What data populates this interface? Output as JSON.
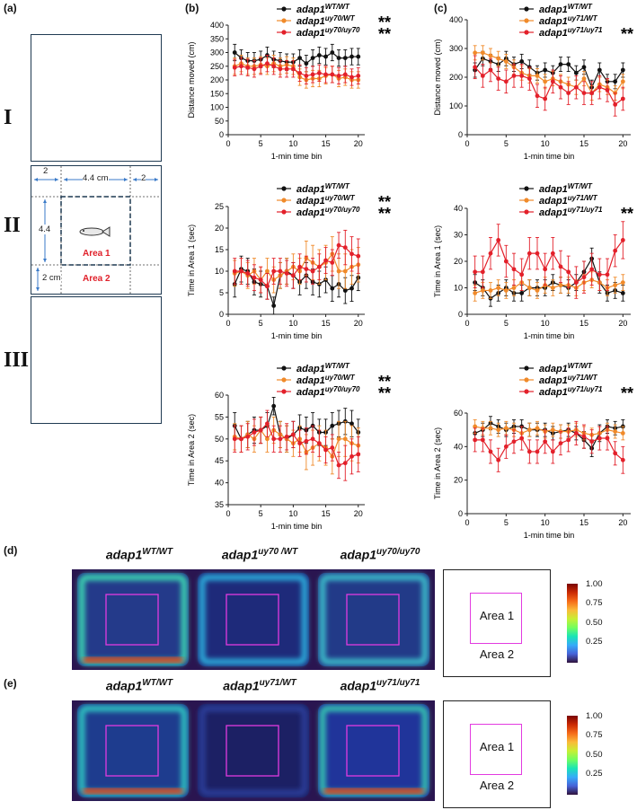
{
  "panels": {
    "a": {
      "label": "(a)"
    },
    "b": {
      "label": "(b)"
    },
    "c": {
      "label": "(c)"
    },
    "d": {
      "label": "(d)"
    },
    "e": {
      "label": "(e)"
    }
  },
  "arena": {
    "rows": [
      "I",
      "II",
      "III"
    ],
    "dims": {
      "left": "2",
      "center": "4.4 cm",
      "right": "2",
      "vertical": "4.4",
      "bottom": "2 cm"
    },
    "area1": "Area 1",
    "area2": "Area 2",
    "fish_icon": "fish-icon"
  },
  "colors": {
    "wt": "#111111",
    "het": "#f08a2a",
    "hom": "#e3202a",
    "area_box": "#e23be0",
    "arena_border": "#1f3a52"
  },
  "xlabel": "1-min time bin",
  "legends": {
    "b": [
      {
        "base": "adap1",
        "sup": "WT/WT",
        "stars": ""
      },
      {
        "base": "adap1",
        "sup": "uy70/WT",
        "stars": "**"
      },
      {
        "base": "adap1",
        "sup": "uy70/uy70",
        "stars": "**"
      }
    ],
    "c": [
      {
        "base": "adap1",
        "sup": "WT/WT",
        "stars": ""
      },
      {
        "base": "adap1",
        "sup": "uy71/WT",
        "stars": ""
      },
      {
        "base": "adap1",
        "sup": "uy71/uy71",
        "stars": "**"
      }
    ]
  },
  "chart_data": [
    {
      "id": "b1",
      "type": "line",
      "ylabel": "Distance moved (cm)",
      "xlabel": "1-min time bin",
      "ylim": [
        0,
        400
      ],
      "yticks": [
        0,
        50,
        100,
        150,
        200,
        250,
        300,
        350,
        400
      ],
      "xlim": [
        0,
        21
      ],
      "xticks": [
        0,
        5,
        10,
        15,
        20
      ],
      "x": [
        1,
        2,
        3,
        4,
        5,
        6,
        7,
        8,
        9,
        10,
        11,
        12,
        13,
        14,
        15,
        16,
        17,
        18,
        19,
        20
      ],
      "series": [
        {
          "name": "adap1 WT/WT",
          "values": [
            300,
            280,
            270,
            270,
            275,
            290,
            275,
            270,
            265,
            265,
            280,
            260,
            280,
            290,
            285,
            300,
            280,
            280,
            285,
            285
          ],
          "err": [
            30,
            30,
            30,
            30,
            30,
            30,
            30,
            30,
            30,
            30,
            30,
            30,
            30,
            30,
            30,
            30,
            30,
            30,
            30,
            30
          ]
        },
        {
          "name": "adap1 uy70/WT",
          "values": [
            250,
            260,
            250,
            250,
            255,
            250,
            260,
            250,
            255,
            250,
            210,
            200,
            205,
            205,
            215,
            220,
            205,
            210,
            200,
            200
          ],
          "err": [
            30,
            30,
            30,
            30,
            30,
            30,
            30,
            30,
            30,
            30,
            30,
            30,
            30,
            30,
            30,
            30,
            30,
            30,
            30,
            30
          ]
        },
        {
          "name": "adap1 uy70/uy70",
          "values": [
            245,
            250,
            245,
            240,
            250,
            260,
            250,
            240,
            240,
            240,
            225,
            215,
            220,
            225,
            220,
            220,
            215,
            220,
            210,
            215
          ],
          "err": [
            30,
            30,
            30,
            30,
            30,
            30,
            30,
            30,
            30,
            30,
            30,
            30,
            30,
            30,
            30,
            30,
            30,
            30,
            30,
            30
          ]
        }
      ]
    },
    {
      "id": "b2",
      "type": "line",
      "ylabel": "Time in Area 1 (sec)",
      "xlabel": "1-min time bin",
      "ylim": [
        0,
        25
      ],
      "yticks": [
        0,
        5,
        10,
        15,
        20,
        25
      ],
      "xlim": [
        0,
        21
      ],
      "xticks": [
        0,
        5,
        10,
        15,
        20
      ],
      "x": [
        1,
        2,
        3,
        4,
        5,
        6,
        7,
        8,
        9,
        10,
        11,
        12,
        13,
        14,
        15,
        16,
        17,
        18,
        19,
        20
      ],
      "series": [
        {
          "name": "adap1 WT/WT",
          "values": [
            7,
            10.5,
            10,
            7.5,
            7,
            6.5,
            2,
            9,
            10,
            9,
            7.5,
            9,
            7.5,
            7,
            8,
            6,
            7,
            5.5,
            6,
            8.5
          ],
          "err": [
            3,
            3,
            3,
            3,
            3,
            3,
            2,
            3,
            3,
            3,
            3,
            3,
            3,
            3,
            3,
            3,
            3,
            3,
            3,
            3
          ]
        },
        {
          "name": "adap1 uy70/WT",
          "values": [
            9.5,
            10,
            9,
            10,
            8,
            10,
            8,
            9,
            10,
            11,
            10,
            13,
            12,
            11,
            12,
            14,
            10,
            10,
            11,
            11.5
          ],
          "err": [
            3,
            3,
            3,
            3,
            3,
            3,
            3,
            3,
            3,
            3,
            3,
            4,
            4,
            4,
            4,
            4,
            4,
            4,
            4,
            4
          ]
        },
        {
          "name": "adap1 uy70/uy70",
          "values": [
            10,
            10,
            9.5,
            8.5,
            8,
            6.5,
            10,
            10,
            9.5,
            9,
            11,
            10.5,
            10,
            11,
            12.5,
            12,
            16,
            15.5,
            14,
            13.5
          ],
          "err": [
            3,
            3,
            3,
            3,
            3,
            3,
            3,
            3,
            3,
            3,
            3,
            3,
            3,
            3,
            3,
            3,
            3,
            4,
            4,
            4
          ]
        }
      ]
    },
    {
      "id": "b3",
      "type": "line",
      "ylabel": "Time in Area 2 (sec)",
      "xlabel": "1-min time bin",
      "ylim": [
        35,
        60
      ],
      "yticks": [
        35,
        40,
        45,
        50,
        55,
        60
      ],
      "xlim": [
        0,
        21
      ],
      "xticks": [
        0,
        5,
        10,
        15,
        20
      ],
      "x": [
        1,
        2,
        3,
        4,
        5,
        6,
        7,
        8,
        9,
        10,
        11,
        12,
        13,
        14,
        15,
        16,
        17,
        18,
        19,
        20
      ],
      "series": [
        {
          "name": "adap1 WT/WT",
          "values": [
            53,
            50,
            51,
            52,
            52,
            53,
            57.5,
            51,
            50,
            51,
            52.5,
            52,
            53,
            51.5,
            51.5,
            53,
            53.5,
            54,
            53.5,
            51.5
          ],
          "err": [
            3,
            3,
            3,
            3,
            3,
            3,
            2,
            3,
            3,
            3,
            3,
            3,
            3,
            3,
            3,
            3,
            3,
            3,
            3,
            3
          ]
        },
        {
          "name": "adap1 uy70/WT",
          "values": [
            50.5,
            50,
            51,
            50,
            52,
            50,
            52,
            51,
            50,
            49,
            50,
            47,
            48,
            49,
            48,
            46,
            50,
            50,
            49,
            48.5
          ],
          "err": [
            3,
            3,
            3,
            3,
            3,
            3,
            3,
            3,
            3,
            3,
            3,
            4,
            4,
            4,
            4,
            4,
            4,
            4,
            4,
            4
          ]
        },
        {
          "name": "adap1 uy70/uy70",
          "values": [
            50,
            50,
            50.5,
            51.5,
            52,
            53.5,
            50,
            50,
            50.5,
            51,
            49,
            49.5,
            50,
            49,
            47.5,
            48,
            44,
            44.5,
            46,
            46.5
          ],
          "err": [
            3,
            3,
            3,
            3,
            3,
            3,
            3,
            3,
            3,
            3,
            3,
            3,
            3,
            3,
            3,
            3,
            3,
            4,
            4,
            4
          ]
        }
      ]
    },
    {
      "id": "c1",
      "type": "line",
      "ylabel": "Distance moved (cm)",
      "xlabel": "1-min time bin",
      "ylim": [
        0,
        400
      ],
      "yticks": [
        0,
        100,
        200,
        300,
        400
      ],
      "xlim": [
        0,
        21
      ],
      "xticks": [
        0,
        5,
        10,
        15,
        20
      ],
      "x": [
        1,
        2,
        3,
        4,
        5,
        6,
        7,
        8,
        9,
        10,
        11,
        12,
        13,
        14,
        15,
        16,
        17,
        18,
        19,
        20
      ],
      "series": [
        {
          "name": "adap1 WT/WT",
          "values": [
            225,
            265,
            255,
            245,
            265,
            245,
            255,
            235,
            215,
            225,
            215,
            245,
            245,
            215,
            235,
            165,
            225,
            185,
            185,
            225
          ],
          "err": [
            25,
            25,
            25,
            25,
            25,
            25,
            25,
            25,
            25,
            25,
            25,
            25,
            25,
            25,
            25,
            25,
            25,
            25,
            25,
            25
          ]
        },
        {
          "name": "adap1 uy71/WT",
          "values": [
            285,
            285,
            275,
            265,
            255,
            235,
            215,
            205,
            205,
            185,
            195,
            185,
            175,
            165,
            195,
            145,
            175,
            165,
            145,
            185
          ],
          "err": [
            25,
            25,
            25,
            25,
            25,
            25,
            25,
            25,
            25,
            25,
            25,
            25,
            25,
            25,
            25,
            25,
            25,
            25,
            25,
            25
          ]
        },
        {
          "name": "adap1 uy71/uy71",
          "values": [
            235,
            205,
            225,
            195,
            185,
            205,
            205,
            195,
            135,
            125,
            185,
            165,
            145,
            165,
            145,
            145,
            165,
            155,
            105,
            125
          ],
          "err": [
            40,
            40,
            40,
            40,
            40,
            40,
            40,
            40,
            40,
            40,
            40,
            40,
            40,
            40,
            40,
            40,
            40,
            40,
            40,
            40
          ]
        }
      ]
    },
    {
      "id": "c2",
      "type": "line",
      "ylabel": "Time in Area 1 (sec)",
      "xlabel": "1-min time bin",
      "ylim": [
        0,
        40
      ],
      "yticks": [
        0,
        10,
        20,
        30,
        40
      ],
      "xlim": [
        0,
        21
      ],
      "xticks": [
        0,
        5,
        10,
        15,
        20
      ],
      "x": [
        1,
        2,
        3,
        4,
        5,
        6,
        7,
        8,
        9,
        10,
        11,
        12,
        13,
        14,
        15,
        16,
        17,
        18,
        19,
        20
      ],
      "series": [
        {
          "name": "adap1 WT/WT",
          "values": [
            12,
            10,
            6,
            8,
            10,
            8,
            8,
            10,
            10,
            10,
            12,
            11,
            10,
            12,
            16,
            21,
            12,
            8,
            9,
            8
          ],
          "err": [
            3,
            3,
            3,
            3,
            3,
            3,
            3,
            3,
            3,
            3,
            3,
            3,
            3,
            3,
            4,
            4,
            4,
            3,
            3,
            3
          ]
        },
        {
          "name": "adap1 uy71/WT",
          "values": [
            8,
            9,
            9,
            10,
            9,
            10,
            12,
            10,
            9,
            11,
            10,
            11,
            11,
            10,
            12,
            13,
            12,
            10,
            11,
            12
          ],
          "err": [
            3,
            3,
            3,
            3,
            3,
            3,
            3,
            3,
            3,
            3,
            3,
            3,
            3,
            3,
            3,
            3,
            3,
            3,
            3,
            3
          ]
        },
        {
          "name": "adap1 uy71/uy71",
          "values": [
            16,
            16,
            23,
            28,
            20,
            17,
            15,
            23,
            23,
            17,
            23,
            18,
            16,
            12,
            14,
            17,
            15,
            15,
            24,
            28
          ],
          "err": [
            6,
            6,
            6,
            6,
            6,
            6,
            6,
            6,
            6,
            6,
            6,
            6,
            6,
            6,
            6,
            6,
            6,
            6,
            6,
            7
          ]
        }
      ]
    },
    {
      "id": "c3",
      "type": "line",
      "ylabel": "Time in Area 2 (sec)",
      "xlabel": "1-min time bin",
      "ylim": [
        0,
        60
      ],
      "yticks": [
        0,
        20,
        40,
        60
      ],
      "xlim": [
        0,
        21
      ],
      "xticks": [
        0,
        5,
        10,
        15,
        20
      ],
      "x": [
        1,
        2,
        3,
        4,
        5,
        6,
        7,
        8,
        9,
        10,
        11,
        12,
        13,
        14,
        15,
        16,
        17,
        18,
        19,
        20
      ],
      "series": [
        {
          "name": "adap1 WT/WT",
          "values": [
            48,
            50,
            54,
            52,
            50,
            52,
            52,
            50,
            50,
            50,
            48,
            49,
            50,
            48,
            44,
            39,
            48,
            52,
            51,
            52
          ],
          "err": [
            4,
            4,
            4,
            4,
            4,
            4,
            4,
            4,
            4,
            4,
            4,
            4,
            4,
            4,
            5,
            5,
            5,
            4,
            4,
            4
          ]
        },
        {
          "name": "adap1 uy71/WT",
          "values": [
            52,
            51,
            51,
            50,
            51,
            50,
            48,
            50,
            51,
            49,
            50,
            49,
            49,
            50,
            48,
            47,
            48,
            50,
            49,
            48
          ],
          "err": [
            4,
            4,
            4,
            4,
            4,
            4,
            4,
            4,
            4,
            4,
            4,
            4,
            4,
            4,
            4,
            4,
            4,
            4,
            4,
            4
          ]
        },
        {
          "name": "adap1 uy71/uy71",
          "values": [
            44,
            44,
            37,
            32,
            40,
            43,
            45,
            37,
            37,
            43,
            37,
            42,
            44,
            48,
            46,
            43,
            45,
            45,
            36,
            32
          ],
          "err": [
            7,
            7,
            7,
            7,
            7,
            7,
            7,
            7,
            7,
            7,
            7,
            7,
            7,
            7,
            7,
            7,
            7,
            7,
            7,
            8
          ]
        }
      ]
    }
  ],
  "heatmaps": {
    "d": [
      {
        "base": "adap1",
        "sup": "WT/WT"
      },
      {
        "base": "adap1",
        "sup": "uy70 /WT"
      },
      {
        "base": "adap1",
        "sup": "uy70/uy70"
      }
    ],
    "e": [
      {
        "base": "adap1",
        "sup": "WT/WT"
      },
      {
        "base": "adap1",
        "sup": "uy71/WT"
      },
      {
        "base": "adap1",
        "sup": "uy71/uy71"
      }
    ],
    "schematic": {
      "area1": "Area 1",
      "area2": "Area 2"
    },
    "colorbar": {
      "ticks": [
        "1.00",
        "0.75",
        "0.50",
        "0.25"
      ],
      "max": 1.0,
      "min": 0.0
    }
  }
}
